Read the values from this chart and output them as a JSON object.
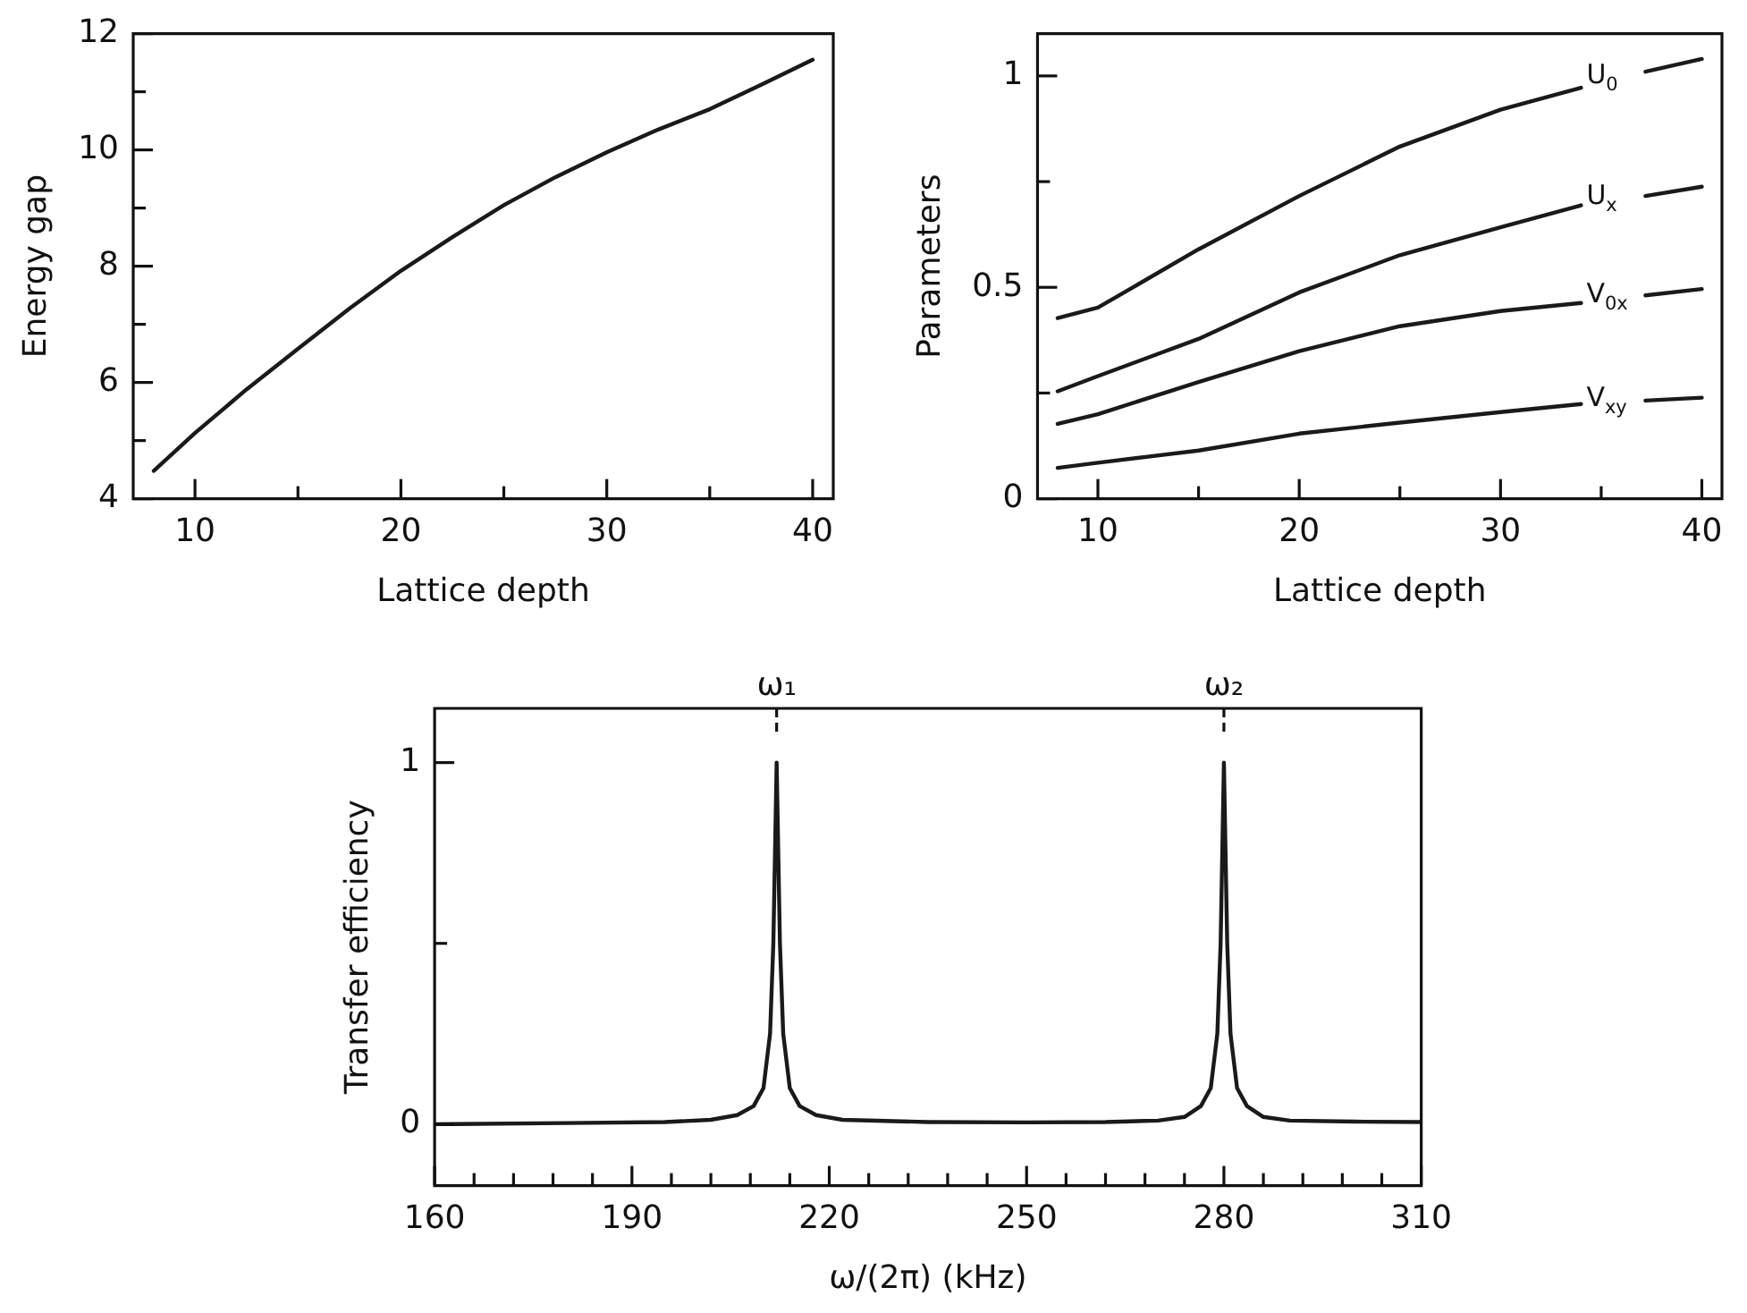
{
  "chart_data": [
    {
      "type": "line",
      "xlabel": "Lattice depth",
      "ylabel": "Energy gap",
      "marker": "none",
      "xlim": [
        7,
        41
      ],
      "ylim": [
        4,
        12
      ],
      "xticks": [
        10,
        {
          "value": 15,
          "label": null
        },
        20,
        {
          "value": 25,
          "label": null
        },
        30,
        {
          "value": 35,
          "label": null
        },
        40
      ],
      "yticks": [
        4,
        {
          "value": 5,
          "label": null
        },
        6,
        {
          "value": 7,
          "label": null
        },
        8,
        {
          "value": 9,
          "label": null
        },
        10,
        {
          "value": 11,
          "label": null
        },
        12
      ],
      "series": [
        {
          "color": "#1a1a1a",
          "x": [
            8,
            10,
            12.5,
            15,
            17.5,
            20,
            22.5,
            25,
            27.5,
            30,
            32.5,
            35,
            37.5,
            40
          ],
          "values": [
            4.48,
            5.13,
            5.88,
            6.58,
            7.27,
            7.92,
            8.5,
            9.05,
            9.53,
            9.96,
            10.35,
            10.7,
            11.12,
            11.55
          ]
        }
      ]
    },
    {
      "type": "line",
      "xlabel": "Lattice depth",
      "ylabel": "Parameters",
      "marker": "none",
      "xlim": [
        7,
        41
      ],
      "ylim": [
        0,
        1.1
      ],
      "xticks": [
        10,
        {
          "value": 15,
          "label": null
        },
        20,
        {
          "value": 25,
          "label": null
        },
        30,
        {
          "value": 35,
          "label": null
        },
        40
      ],
      "yticks": [
        0,
        {
          "value": 0.25,
          "label": null
        },
        0.5,
        {
          "value": 0.75,
          "label": null
        },
        1
      ],
      "series": [
        {
          "name": "U$_{0}$",
          "color": "#1a1a1a",
          "x": [
            8,
            10,
            15,
            20,
            25,
            30,
            34,
            35.6,
            37.2,
            40
          ],
          "values": [
            0.427,
            0.452,
            0.59,
            0.716,
            0.833,
            0.92,
            0.972,
            null,
            1.01,
            1.04
          ]
        },
        {
          "name": "U$_{x}$",
          "color": "#1a1a1a",
          "x": [
            8,
            10,
            15,
            20,
            25,
            30,
            34,
            35.6,
            37.2,
            40
          ],
          "values": [
            0.254,
            0.29,
            0.378,
            0.488,
            0.576,
            0.642,
            0.694,
            null,
            0.716,
            0.738
          ]
        },
        {
          "name": "V$_{0x}$",
          "color": "#1a1a1a",
          "x": [
            8,
            10,
            15,
            20,
            25,
            30,
            34,
            35.6,
            37.2,
            40
          ],
          "values": [
            0.177,
            0.2,
            0.276,
            0.349,
            0.408,
            0.444,
            0.463,
            null,
            0.481,
            0.496
          ]
        },
        {
          "name": "V$_{xy}$",
          "color": "#1a1a1a",
          "x": [
            8,
            10,
            15,
            20,
            25,
            30,
            34,
            35.6,
            37.2,
            40
          ],
          "values": [
            0.073,
            0.085,
            0.114,
            0.154,
            0.18,
            0.205,
            0.224,
            null,
            0.232,
            0.239
          ]
        }
      ]
    },
    {
      "type": "line",
      "xlabel": "ω/(2π) (kHz)",
      "ylabel": "Transfer efficiency",
      "marker": "none",
      "xlim": [
        160,
        310
      ],
      "ylim": [
        -0.17,
        1.15
      ],
      "xticks": [
        160,
        {
          "value": 166,
          "label": null
        },
        {
          "value": 172,
          "label": null
        },
        {
          "value": 178,
          "label": null
        },
        {
          "value": 184,
          "label": null
        },
        190,
        {
          "value": 196,
          "label": null
        },
        {
          "value": 202,
          "label": null
        },
        {
          "value": 208,
          "label": null
        },
        {
          "value": 214,
          "label": null
        },
        220,
        {
          "value": 226,
          "label": null
        },
        {
          "value": 232,
          "label": null
        },
        {
          "value": 238,
          "label": null
        },
        {
          "value": 244,
          "label": null
        },
        250,
        {
          "value": 256,
          "label": null
        },
        {
          "value": 262,
          "label": null
        },
        {
          "value": 268,
          "label": null
        },
        {
          "value": 274,
          "label": null
        },
        280,
        {
          "value": 286,
          "label": null
        },
        {
          "value": 292,
          "label": null
        },
        {
          "value": 298,
          "label": null
        },
        {
          "value": 304,
          "label": null
        },
        310
      ],
      "yticks": [
        0,
        {
          "value": 0.5,
          "label": null
        },
        1
      ],
      "ref_lines": [
        {
          "axis": "x",
          "value": 212,
          "label": "ω₁",
          "line_style": "dashed"
        },
        {
          "axis": "x",
          "value": 280,
          "label": "ω₂",
          "line_style": "dashed"
        }
      ],
      "series": [
        {
          "color": "#1a1a1a",
          "x": [
            160,
            180,
            195,
            202,
            206,
            208.5,
            210,
            211,
            211.5,
            212,
            212.5,
            213,
            214,
            215.5,
            218,
            222,
            235,
            250,
            262,
            270,
            274,
            276.5,
            278,
            279,
            279.5,
            280,
            280.5,
            281,
            282,
            283.5,
            286,
            290,
            300,
            310
          ],
          "values": [
            0,
            0.003,
            0.006,
            0.012,
            0.025,
            0.05,
            0.1,
            0.25,
            0.5,
            1,
            0.5,
            0.25,
            0.1,
            0.05,
            0.025,
            0.012,
            0.006,
            0.005,
            0.006,
            0.01,
            0.02,
            0.05,
            0.1,
            0.25,
            0.5,
            1,
            0.5,
            0.25,
            0.1,
            0.05,
            0.02,
            0.01,
            0.007,
            0.006
          ]
        }
      ]
    }
  ]
}
